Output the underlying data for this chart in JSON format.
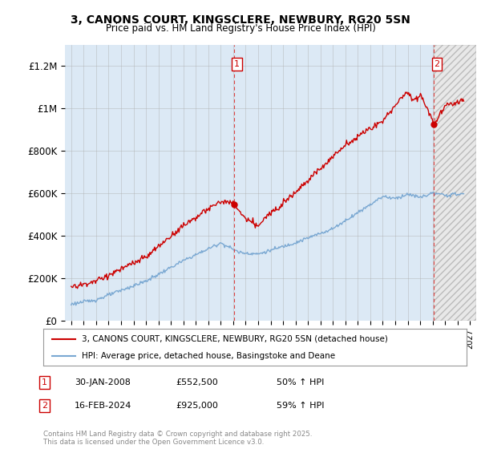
{
  "title": "3, CANONS COURT, KINGSCLERE, NEWBURY, RG20 5SN",
  "subtitle": "Price paid vs. HM Land Registry's House Price Index (HPI)",
  "ylabel_ticks": [
    "£0",
    "£200K",
    "£400K",
    "£600K",
    "£800K",
    "£1M",
    "£1.2M"
  ],
  "ytick_values": [
    0,
    200000,
    400000,
    600000,
    800000,
    1000000,
    1200000
  ],
  "ylim": [
    0,
    1300000
  ],
  "xlim_start": 1994.5,
  "xlim_end": 2027.5,
  "legend_line1": "3, CANONS COURT, KINGSCLERE, NEWBURY, RG20 5SN (detached house)",
  "legend_line2": "HPI: Average price, detached house, Basingstoke and Deane",
  "sale1_date": 2008.08,
  "sale1_price": 552500,
  "sale1_label": "1",
  "sale2_date": 2024.12,
  "sale2_price": 925000,
  "sale2_label": "2",
  "table_rows": [
    {
      "num": "1",
      "date": "30-JAN-2008",
      "price": "£552,500",
      "hpi": "50% ↑ HPI"
    },
    {
      "num": "2",
      "date": "16-FEB-2024",
      "price": "£925,000",
      "hpi": "59% ↑ HPI"
    }
  ],
  "footer": "Contains HM Land Registry data © Crown copyright and database right 2025.\nThis data is licensed under the Open Government Licence v3.0.",
  "property_line_color": "#cc0000",
  "hpi_line_color": "#7aa8d2",
  "vline_color": "#dd4444",
  "chart_bg_color": "#dce9f5",
  "hatch_color": "#cccccc",
  "background_color": "#ffffff",
  "grid_color": "#aaaaaa"
}
